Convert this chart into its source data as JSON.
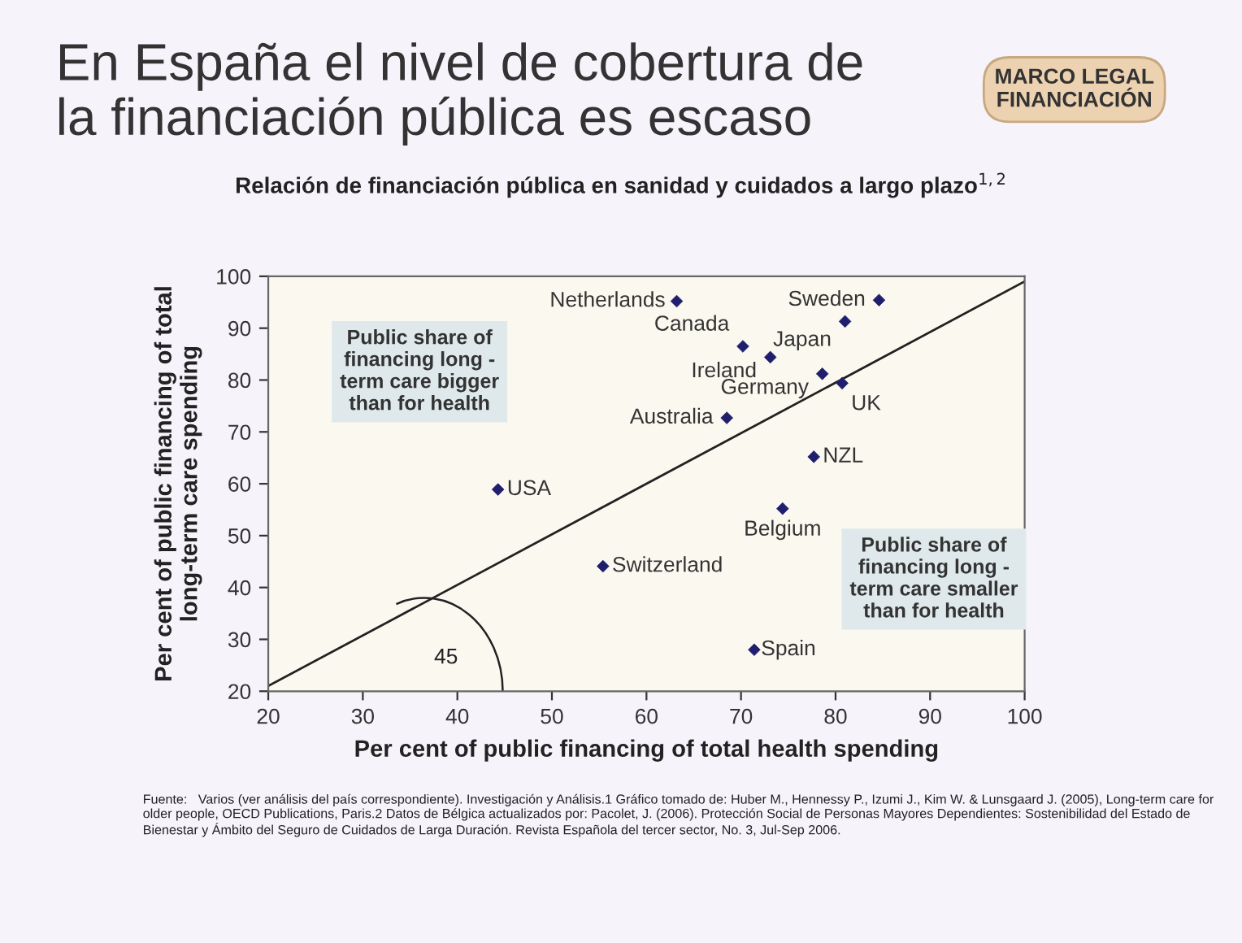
{
  "chart_data": {
    "type": "scatter",
    "title": "En España el nivel de cobertura de\nla financiación pública es escaso",
    "subtitle": "Relación de financiación pública en sanidad y cuidados a largo plazo$^{1,2}$",
    "xlabel": "Per cent of public financing of total health spending",
    "ylabel": "Per cent of public financing of total\nlong-term care spending",
    "xlim": [
      20,
      100
    ],
    "ylim": [
      20,
      100
    ],
    "xticks": [
      20,
      30,
      40,
      50,
      60,
      70,
      80,
      90,
      100
    ],
    "yticks": [
      20,
      30,
      40,
      50,
      60,
      70,
      80,
      90,
      100
    ],
    "grid": false,
    "legend": false,
    "marker": "diamond",
    "series": [
      {
        "color": "#1f1f6e",
        "x": [
          63.2,
          84.6,
          81.0,
          70.2,
          73.1,
          78.6,
          80.7,
          68.5,
          77.7,
          44.3,
          74.4,
          55.4,
          71.4
        ],
        "values": [
          95.2,
          95.4,
          91.3,
          86.5,
          84.4,
          81.2,
          79.4,
          72.7,
          65.2,
          58.9,
          55.2,
          44.1,
          28.0
        ]
      },
      {
        "type": "line",
        "marker": "none",
        "color": "#222222",
        "x": [
          20,
          100
        ],
        "values": [
          21,
          99
        ]
      }
    ],
    "annotations": [
      "MARCO LEGAL\nFINANCIACIÓN",
      "Public share of\nfinancing long -\nterm care bigger\nthan for health",
      "Public share of\nfinancing long -\nterm care smaller\nthan for health",
      "45",
      "Fuente:   Varios (ver análisis del país correspondiente). Investigación y Análisis.1 Gráfico tomado de: Huber M., Hennessy P., Izumi J., Kim W. & Lunsgaard J. (2005), Long-term care for older people, OECD Publications, Paris.2 Datos de Bélgica actualizados por: Pacolet, J. (2006). Protección Social de Personas Mayores Dependientes: Sostenibilidad del Estado de Bienestar y Ámbito del Seguro de Cuidados de Larga Duración. Revista Española del tercer sector, No. 3, Jul-Sep 2006.",
      {
        "text": "Netherlands",
        "x": 63.2,
        "y": 95.2
      },
      {
        "text": "Sweden",
        "x": 84.6,
        "y": 95.4
      },
      {
        "text": "Japan",
        "x": 81.0,
        "y": 91.3
      },
      {
        "text": "Canada",
        "x": 70.2,
        "y": 86.5
      },
      {
        "text": "Ireland",
        "x": 73.1,
        "y": 84.4
      },
      {
        "text": "Germany",
        "x": 78.6,
        "y": 81.2
      },
      {
        "text": "UK",
        "x": 80.7,
        "y": 79.4
      },
      {
        "text": "Australia",
        "x": 68.5,
        "y": 72.7
      },
      {
        "text": "NZL",
        "x": 77.7,
        "y": 65.2
      },
      {
        "text": "USA",
        "x": 44.3,
        "y": 58.9
      },
      {
        "text": "Belgium",
        "x": 74.4,
        "y": 55.2
      },
      {
        "text": "Switzerland",
        "x": 55.4,
        "y": 44.1
      },
      {
        "text": "Spain",
        "x": 71.4,
        "y": 28.0
      }
    ]
  }
}
